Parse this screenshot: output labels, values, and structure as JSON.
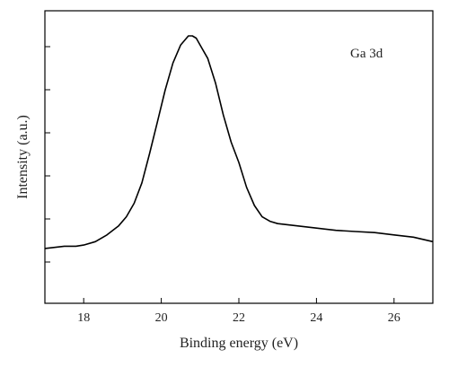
{
  "chart_data": {
    "type": "line",
    "title": "",
    "xlabel": "Binding energy (eV)",
    "ylabel": "Intensity (a.u.)",
    "annotation": "Ga 3d",
    "xlim": [
      17,
      27
    ],
    "ylim": [
      0,
      1
    ],
    "x_ticks": [
      18,
      20,
      22,
      24,
      26
    ],
    "y_tick_labels_shown": false,
    "grid": false,
    "legend": "none",
    "line_color": "#000000",
    "series": [
      {
        "x": [
          17.0,
          17.5,
          17.8,
          18.0,
          18.3,
          18.6,
          18.9,
          19.1,
          19.3,
          19.5,
          19.7,
          19.9,
          20.1,
          20.3,
          20.5,
          20.7,
          20.8,
          20.9,
          21.0,
          21.2,
          21.4,
          21.6,
          21.8,
          22.0,
          22.2,
          22.4,
          22.6,
          22.8,
          23.0,
          23.5,
          24.0,
          24.5,
          25.0,
          25.5,
          26.0,
          26.5,
          27.0
        ],
        "y": [
          0.06,
          0.07,
          0.07,
          0.075,
          0.09,
          0.12,
          0.16,
          0.2,
          0.26,
          0.35,
          0.48,
          0.62,
          0.76,
          0.88,
          0.96,
          1.0,
          1.0,
          0.99,
          0.96,
          0.9,
          0.79,
          0.65,
          0.53,
          0.44,
          0.33,
          0.25,
          0.2,
          0.18,
          0.17,
          0.16,
          0.15,
          0.14,
          0.135,
          0.13,
          0.12,
          0.11,
          0.09
        ]
      }
    ]
  }
}
